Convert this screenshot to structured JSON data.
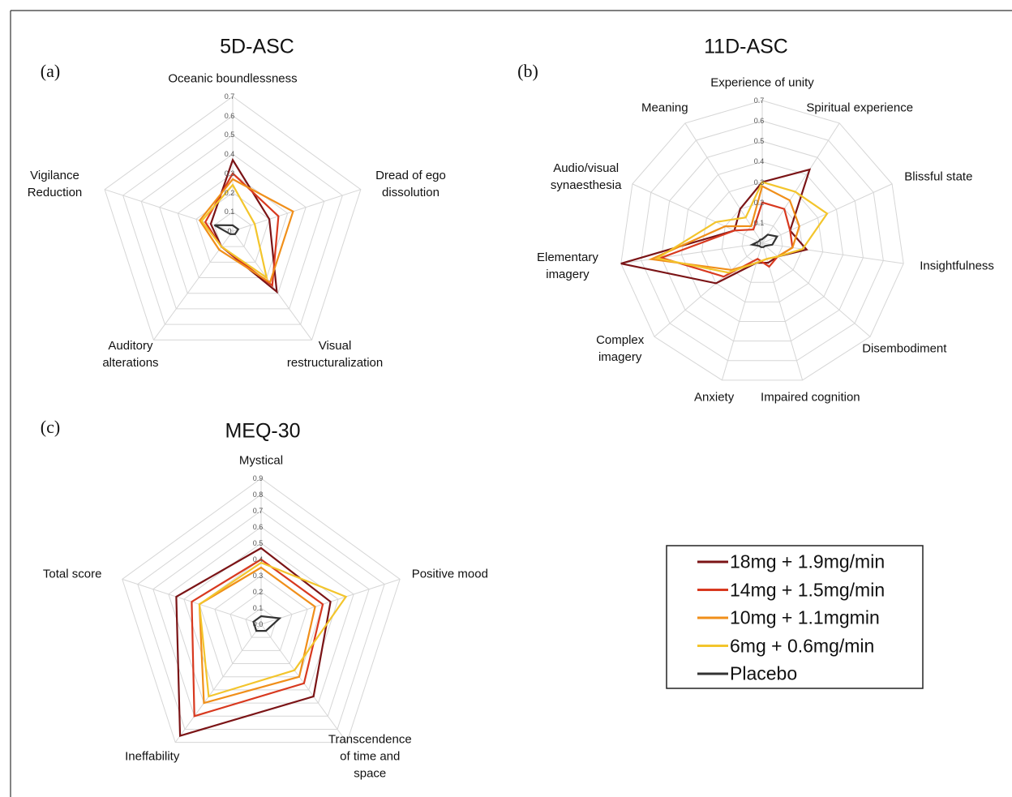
{
  "chart_data": [
    {
      "type": "radar",
      "title": "5D-ASC",
      "label": "(a)",
      "categories": [
        "Oceanic boundlessness",
        "Dread of ego\ndissolution",
        "Visual\nrestructuralization",
        "Auditory\nalterations",
        "Vigilance\nReduction"
      ],
      "series": [
        {
          "values": [
            0.37,
            0.2,
            0.39,
            0.1,
            0.12
          ]
        },
        {
          "values": [
            0.3,
            0.25,
            0.35,
            0.1,
            0.15
          ]
        },
        {
          "values": [
            0.27,
            0.33,
            0.33,
            0.12,
            0.18
          ]
        },
        {
          "values": [
            0.24,
            0.12,
            0.3,
            0.1,
            0.17
          ]
        },
        {
          "values": [
            0.03,
            0.03,
            0.02,
            0.02,
            0.1
          ]
        }
      ],
      "rlim": [
        0,
        0.7
      ],
      "rticks": [
        0,
        0.1,
        0.2,
        0.3,
        0.4,
        0.5,
        0.6,
        0.7
      ]
    },
    {
      "type": "radar",
      "title": "11D-ASC",
      "label": "(b)",
      "categories": [
        "Experience of unity",
        "Spiritual experience",
        "Blissful state",
        "Insightfulness",
        "Disembodiment",
        "Impaired cognition",
        "Anxiety",
        "Complex\nimagery",
        "Elementary\nimagery",
        "Audio/visual\nsynaesthesia",
        "Meaning"
      ],
      "series": [
        {
          "values": [
            0.3,
            0.43,
            0.15,
            0.22,
            0.1,
            0.1,
            0.1,
            0.3,
            0.7,
            0.15,
            0.2
          ]
        },
        {
          "values": [
            0.2,
            0.2,
            0.15,
            0.15,
            0.1,
            0.12,
            0.08,
            0.25,
            0.5,
            0.15,
            0.08
          ]
        },
        {
          "values": [
            0.28,
            0.25,
            0.2,
            0.15,
            0.1,
            0.08,
            0.1,
            0.2,
            0.55,
            0.2,
            0.1
          ]
        },
        {
          "values": [
            0.3,
            0.3,
            0.35,
            0.2,
            0.1,
            0.08,
            0.1,
            0.22,
            0.52,
            0.25,
            0.15
          ]
        },
        {
          "values": [
            0.02,
            0.05,
            0.08,
            0.05,
            0.02,
            0.02,
            0.02,
            0.02,
            0.05,
            0.02,
            0.02
          ]
        }
      ],
      "rlim": [
        0,
        0.7
      ],
      "rticks": [
        0,
        0.1,
        0.2,
        0.3,
        0.4,
        0.5,
        0.6,
        0.7
      ]
    },
    {
      "type": "radar",
      "title": "MEQ-30",
      "label": "(c)",
      "categories": [
        "Mystical",
        "Positive mood",
        "Transcendence\nof time and\nspace",
        "Ineffability",
        "Total score"
      ],
      "series": [
        {
          "values": [
            0.47,
            0.45,
            0.55,
            0.85,
            0.55
          ]
        },
        {
          "values": [
            0.4,
            0.4,
            0.45,
            0.7,
            0.45
          ]
        },
        {
          "values": [
            0.35,
            0.35,
            0.4,
            0.6,
            0.4
          ]
        },
        {
          "values": [
            0.38,
            0.55,
            0.35,
            0.55,
            0.4
          ]
        },
        {
          "values": [
            0.05,
            0.12,
            0.05,
            0.05,
            0.05
          ]
        }
      ],
      "rlim": [
        0,
        0.9
      ],
      "rticks": [
        {
          "value": 0,
          "label": "0.0"
        },
        0.1,
        0.2,
        0.3,
        0.4,
        0.5,
        0.6,
        0.7,
        0.8,
        0.9
      ]
    }
  ],
  "legend": [
    {
      "name": "18mg + 1.9mg/min",
      "color": "#7b1416"
    },
    {
      "name": "14mg + 1.5mg/min",
      "color": "#d8391f"
    },
    {
      "name": "10mg + 1.1mgmin",
      "color": "#f08f1a"
    },
    {
      "name": "6mg + 0.6mg/min",
      "color": "#f3c52c"
    },
    {
      "name": "Placebo",
      "color": "#333333"
    }
  ]
}
